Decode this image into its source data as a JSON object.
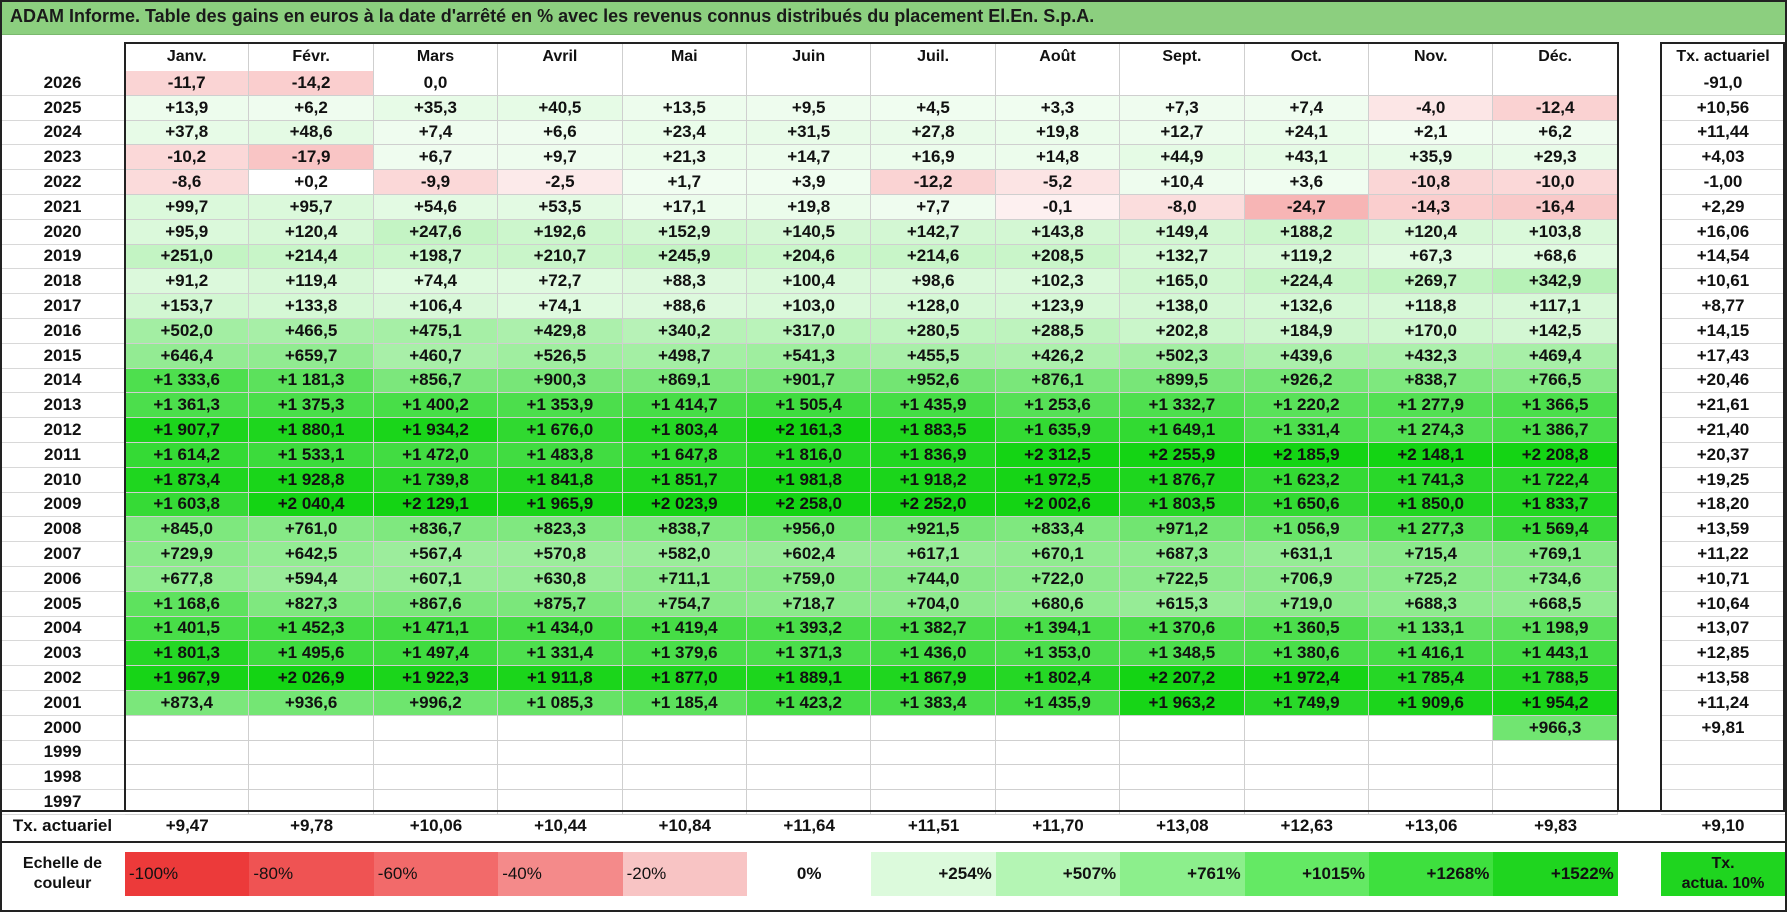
{
  "title": "ADAM Informe. Table des gains en euros à la date d'arrêté en % avec les revenus connus distribués du placement El.En. S.p.A.",
  "columns": [
    "Janv.",
    "Févr.",
    "Mars",
    "Avril",
    "Mai",
    "Juin",
    "Juil.",
    "Août",
    "Sept.",
    "Oct.",
    "Nov.",
    "Déc."
  ],
  "tx_header": "Tx. actuariel",
  "rows": [
    {
      "year": "2026",
      "values": [
        "-11,7",
        "-14,2",
        "0,0",
        "",
        "",
        "",
        "",
        "",
        "",
        "",
        "",
        ""
      ],
      "tx": "-91,0"
    },
    {
      "year": "2025",
      "values": [
        "+13,9",
        "+6,2",
        "+35,3",
        "+40,5",
        "+13,5",
        "+9,5",
        "+4,5",
        "+3,3",
        "+7,3",
        "+7,4",
        "-4,0",
        "-12,4"
      ],
      "tx": "+10,56"
    },
    {
      "year": "2024",
      "values": [
        "+37,8",
        "+48,6",
        "+7,4",
        "+6,6",
        "+23,4",
        "+31,5",
        "+27,8",
        "+19,8",
        "+12,7",
        "+24,1",
        "+2,1",
        "+6,2"
      ],
      "tx": "+11,44"
    },
    {
      "year": "2023",
      "values": [
        "-10,2",
        "-17,9",
        "+6,7",
        "+9,7",
        "+21,3",
        "+14,7",
        "+16,9",
        "+14,8",
        "+44,9",
        "+43,1",
        "+35,9",
        "+29,3"
      ],
      "tx": "+4,03"
    },
    {
      "year": "2022",
      "values": [
        "-8,6",
        "+0,2",
        "-9,9",
        "-2,5",
        "+1,7",
        "+3,9",
        "-12,2",
        "-5,2",
        "+10,4",
        "+3,6",
        "-10,8",
        "-10,0"
      ],
      "tx": "-1,00"
    },
    {
      "year": "2021",
      "values": [
        "+99,7",
        "+95,7",
        "+54,6",
        "+53,5",
        "+17,1",
        "+19,8",
        "+7,7",
        "-0,1",
        "-8,0",
        "-24,7",
        "-14,3",
        "-16,4"
      ],
      "tx": "+2,29"
    },
    {
      "year": "2020",
      "values": [
        "+95,9",
        "+120,4",
        "+247,6",
        "+192,6",
        "+152,9",
        "+140,5",
        "+142,7",
        "+143,8",
        "+149,4",
        "+188,2",
        "+120,4",
        "+103,8"
      ],
      "tx": "+16,06"
    },
    {
      "year": "2019",
      "values": [
        "+251,0",
        "+214,4",
        "+198,7",
        "+210,7",
        "+245,9",
        "+204,6",
        "+214,6",
        "+208,5",
        "+132,7",
        "+119,2",
        "+67,3",
        "+68,6"
      ],
      "tx": "+14,54"
    },
    {
      "year": "2018",
      "values": [
        "+91,2",
        "+119,4",
        "+74,4",
        "+72,7",
        "+88,3",
        "+100,4",
        "+98,6",
        "+102,3",
        "+165,0",
        "+224,4",
        "+269,7",
        "+342,9"
      ],
      "tx": "+10,61"
    },
    {
      "year": "2017",
      "values": [
        "+153,7",
        "+133,8",
        "+106,4",
        "+74,1",
        "+88,6",
        "+103,0",
        "+128,0",
        "+123,9",
        "+138,0",
        "+132,6",
        "+118,8",
        "+117,1"
      ],
      "tx": "+8,77"
    },
    {
      "year": "2016",
      "values": [
        "+502,0",
        "+466,5",
        "+475,1",
        "+429,8",
        "+340,2",
        "+317,0",
        "+280,5",
        "+288,5",
        "+202,8",
        "+184,9",
        "+170,0",
        "+142,5"
      ],
      "tx": "+14,15"
    },
    {
      "year": "2015",
      "values": [
        "+646,4",
        "+659,7",
        "+460,7",
        "+526,5",
        "+498,7",
        "+541,3",
        "+455,5",
        "+426,2",
        "+502,3",
        "+439,6",
        "+432,3",
        "+469,4"
      ],
      "tx": "+17,43"
    },
    {
      "year": "2014",
      "values": [
        "+1 333,6",
        "+1 181,3",
        "+856,7",
        "+900,3",
        "+869,1",
        "+901,7",
        "+952,6",
        "+876,1",
        "+899,5",
        "+926,2",
        "+838,7",
        "+766,5"
      ],
      "tx": "+20,46"
    },
    {
      "year": "2013",
      "values": [
        "+1 361,3",
        "+1 375,3",
        "+1 400,2",
        "+1 353,9",
        "+1 414,7",
        "+1 505,4",
        "+1 435,9",
        "+1 253,6",
        "+1 332,7",
        "+1 220,2",
        "+1 277,9",
        "+1 366,5"
      ],
      "tx": "+21,61"
    },
    {
      "year": "2012",
      "values": [
        "+1 907,7",
        "+1 880,1",
        "+1 934,2",
        "+1 676,0",
        "+1 803,4",
        "+2 161,3",
        "+1 883,5",
        "+1 635,9",
        "+1 649,1",
        "+1 331,4",
        "+1 274,3",
        "+1 386,7"
      ],
      "tx": "+21,40"
    },
    {
      "year": "2011",
      "values": [
        "+1 614,2",
        "+1 533,1",
        "+1 472,0",
        "+1 483,8",
        "+1 647,8",
        "+1 816,0",
        "+1 836,9",
        "+2 312,5",
        "+2 255,9",
        "+2 185,9",
        "+2 148,1",
        "+2 208,8"
      ],
      "tx": "+20,37"
    },
    {
      "year": "2010",
      "values": [
        "+1 873,4",
        "+1 928,8",
        "+1 739,8",
        "+1 841,8",
        "+1 851,7",
        "+1 981,8",
        "+1 918,2",
        "+1 972,5",
        "+1 876,7",
        "+1 623,2",
        "+1 741,3",
        "+1 722,4"
      ],
      "tx": "+19,25"
    },
    {
      "year": "2009",
      "values": [
        "+1 603,8",
        "+2 040,4",
        "+2 129,1",
        "+1 965,9",
        "+2 023,9",
        "+2 258,0",
        "+2 252,0",
        "+2 002,6",
        "+1 803,5",
        "+1 650,6",
        "+1 850,0",
        "+1 833,7"
      ],
      "tx": "+18,20"
    },
    {
      "year": "2008",
      "values": [
        "+845,0",
        "+761,0",
        "+836,7",
        "+823,3",
        "+838,7",
        "+956,0",
        "+921,5",
        "+833,4",
        "+971,2",
        "+1 056,9",
        "+1 277,3",
        "+1 569,4"
      ],
      "tx": "+13,59"
    },
    {
      "year": "2007",
      "values": [
        "+729,9",
        "+642,5",
        "+567,4",
        "+570,8",
        "+582,0",
        "+602,4",
        "+617,1",
        "+670,1",
        "+687,3",
        "+631,1",
        "+715,4",
        "+769,1"
      ],
      "tx": "+11,22"
    },
    {
      "year": "2006",
      "values": [
        "+677,8",
        "+594,4",
        "+607,1",
        "+630,8",
        "+711,1",
        "+759,0",
        "+744,0",
        "+722,0",
        "+722,5",
        "+706,9",
        "+725,2",
        "+734,6"
      ],
      "tx": "+10,71"
    },
    {
      "year": "2005",
      "values": [
        "+1 168,6",
        "+827,3",
        "+867,6",
        "+875,7",
        "+754,7",
        "+718,7",
        "+704,0",
        "+680,6",
        "+615,3",
        "+719,0",
        "+688,3",
        "+668,5"
      ],
      "tx": "+10,64"
    },
    {
      "year": "2004",
      "values": [
        "+1 401,5",
        "+1 452,3",
        "+1 471,1",
        "+1 434,0",
        "+1 419,4",
        "+1 393,2",
        "+1 382,7",
        "+1 394,1",
        "+1 370,6",
        "+1 360,5",
        "+1 133,1",
        "+1 198,9"
      ],
      "tx": "+13,07"
    },
    {
      "year": "2003",
      "values": [
        "+1 801,3",
        "+1 495,6",
        "+1 497,4",
        "+1 331,4",
        "+1 379,6",
        "+1 371,3",
        "+1 436,0",
        "+1 353,0",
        "+1 348,5",
        "+1 380,6",
        "+1 416,1",
        "+1 443,1"
      ],
      "tx": "+12,85"
    },
    {
      "year": "2002",
      "values": [
        "+1 967,9",
        "+2 026,9",
        "+1 922,3",
        "+1 911,8",
        "+1 877,0",
        "+1 889,1",
        "+1 867,9",
        "+1 802,4",
        "+2 207,2",
        "+1 972,4",
        "+1 785,4",
        "+1 788,5"
      ],
      "tx": "+13,58"
    },
    {
      "year": "2001",
      "values": [
        "+873,4",
        "+936,6",
        "+996,2",
        "+1 085,3",
        "+1 185,4",
        "+1 423,2",
        "+1 383,4",
        "+1 435,9",
        "+1 963,2",
        "+1 749,9",
        "+1 909,6",
        "+1 954,2"
      ],
      "tx": "+11,24"
    },
    {
      "year": "2000",
      "values": [
        "",
        "",
        "",
        "",
        "",
        "",
        "",
        "",
        "",
        "",
        "",
        "+966,3"
      ],
      "tx": "+9,81"
    },
    {
      "year": "1999",
      "values": [
        "",
        "",
        "",
        "",
        "",
        "",
        "",
        "",
        "",
        "",
        "",
        ""
      ],
      "tx": ""
    },
    {
      "year": "1998",
      "values": [
        "",
        "",
        "",
        "",
        "",
        "",
        "",
        "",
        "",
        "",
        "",
        ""
      ],
      "tx": ""
    },
    {
      "year": "1997",
      "values": [
        "",
        "",
        "",
        "",
        "",
        "",
        "",
        "",
        "",
        "",
        "",
        ""
      ],
      "tx": ""
    }
  ],
  "footer": {
    "label": "Tx. actuariel",
    "values": [
      "+9,47",
      "+9,78",
      "+10,06",
      "+10,44",
      "+10,84",
      "+11,64",
      "+11,51",
      "+11,70",
      "+13,08",
      "+12,63",
      "+13,06",
      "+9,83"
    ],
    "tx": "+9,10"
  },
  "legend": {
    "label_line1": "Echelle de",
    "label_line2": "couleur",
    "items": [
      "-100%",
      "-80%",
      "-60%",
      "-40%",
      "-20%",
      "0%",
      "+254%",
      "+507%",
      "+761%",
      "+1015%",
      "+1268%",
      "+1522%"
    ],
    "tx_line1": "Tx.",
    "tx_line2": "actua. 10%"
  },
  "colors": {
    "title_bg": "#8ccf7f",
    "legend": [
      "#ec3a3a",
      "#ef5353",
      "#f26a6a",
      "#f48a8a",
      "#f8c4c4",
      "#ffffff",
      "#dcfadc",
      "#b4f5b4",
      "#8cef8c",
      "#64e964",
      "#3ee03e",
      "#1fd51f"
    ],
    "legend_tx": "#1fd51f"
  }
}
